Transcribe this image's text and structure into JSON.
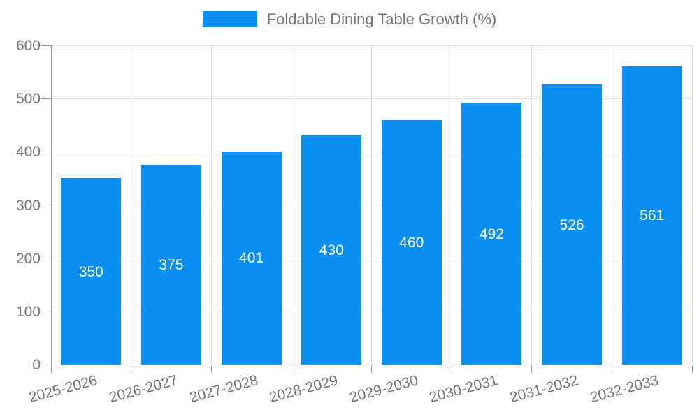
{
  "chart_data": {
    "type": "bar",
    "title": "Foldable Dining Table Growth (%)",
    "series_name": "Foldable Dining Table Growth (%)",
    "categories": [
      "2025-2026",
      "2026-2027",
      "2027-2028",
      "2028-2029",
      "2029-2030",
      "2030-2031",
      "2031-2032",
      "2032-2033"
    ],
    "values": [
      350,
      375,
      401,
      430,
      460,
      492,
      526,
      561
    ],
    "xlabel": "",
    "ylabel": "",
    "ylim": [
      0,
      600
    ],
    "yticks": [
      0,
      100,
      200,
      300,
      400,
      500,
      600
    ],
    "grid": true,
    "legend_position": "top",
    "x_tick_rotation_deg": -15,
    "bar_value_labels_inside": true
  },
  "colors": {
    "bar": "#0a90f2",
    "bar_label": "#ffffff",
    "axis_text": "#757575",
    "axis_line": "#999999",
    "gridline": "#e0e0e0",
    "background": "#ffffff"
  }
}
